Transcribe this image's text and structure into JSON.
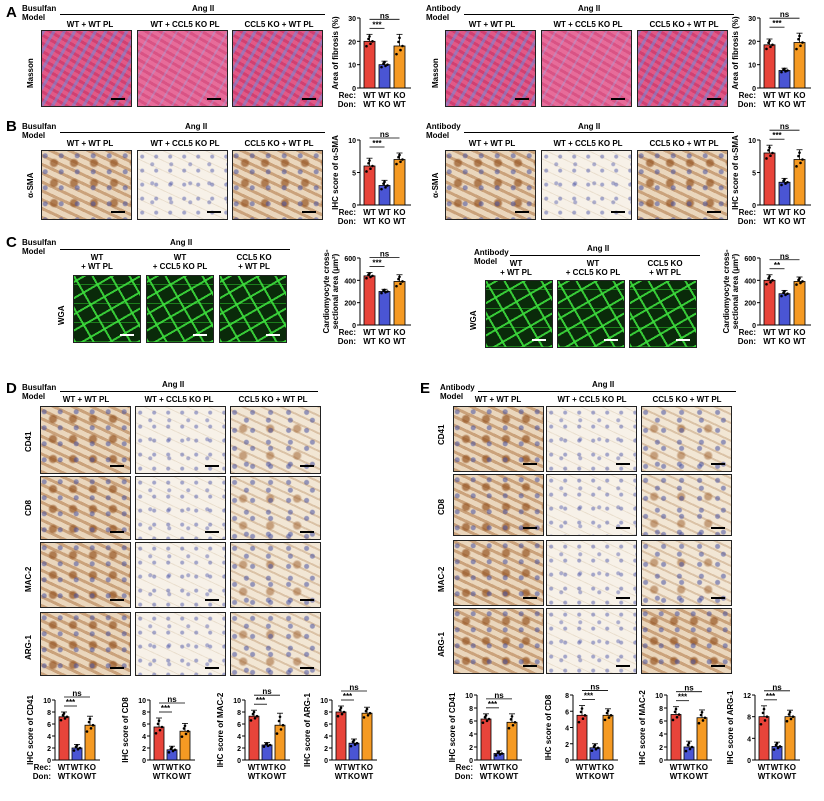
{
  "panels": [
    "A",
    "B",
    "C",
    "D",
    "E"
  ],
  "models": {
    "busulfan": "Busulfan\nModel",
    "antibody": "Antibody\nModel"
  },
  "treatment": "Ang II",
  "conditions": [
    "WT + WT PL",
    "WT + CCL5 KO PL",
    "CCL5 KO + WT PL"
  ],
  "conditions_wrapped": [
    "WT\n+ WT PL",
    "WT\n+ CCL5 KO PL",
    "CCL5 KO\n+ WT PL"
  ],
  "stains": [
    "Masson",
    "α-SMA",
    "WGA",
    "CD41",
    "CD8",
    "MAC-2",
    "ARG-1"
  ],
  "axis_rows": {
    "rec": "Rec:",
    "don": "Don:",
    "rec_vals": [
      "WT",
      "WT",
      "KO"
    ],
    "don_vals": [
      "WT",
      "KO",
      "WT"
    ]
  },
  "sig": {
    "ns": "ns",
    "three": "***",
    "two": "**"
  },
  "colors": {
    "wt_wt": "#e8443a",
    "wt_ko": "#4a55d4",
    "ko_wt": "#f59a23"
  },
  "chart_data": [
    {
      "id": "A-busulfan",
      "type": "bar",
      "ylabel": "Area of fibrosis (%)",
      "ylim": [
        0,
        30
      ],
      "yticks": [
        0,
        10,
        20,
        30
      ],
      "values": [
        20,
        10,
        18
      ],
      "errors": [
        3,
        1.5,
        5
      ],
      "sig": [
        "***",
        "ns"
      ]
    },
    {
      "id": "A-antibody",
      "type": "bar",
      "ylabel": "Area of fibrosis (%)",
      "ylim": [
        0,
        30
      ],
      "yticks": [
        0,
        10,
        20,
        30
      ],
      "values": [
        18.5,
        7.5,
        19.5
      ],
      "errors": [
        2.5,
        1,
        4
      ],
      "sig": [
        "***",
        "ns"
      ]
    },
    {
      "id": "B-busulfan",
      "type": "bar",
      "ylabel": "IHC score of α-SMA",
      "ylim": [
        0,
        10
      ],
      "yticks": [
        0,
        5,
        10
      ],
      "values": [
        6,
        3,
        7
      ],
      "errors": [
        1.2,
        0.8,
        1
      ],
      "sig": [
        "***",
        "ns"
      ]
    },
    {
      "id": "B-antibody",
      "type": "bar",
      "ylabel": "IHC score of α-SMA",
      "ylim": [
        0,
        10
      ],
      "yticks": [
        0,
        5,
        10
      ],
      "values": [
        8,
        3.5,
        7
      ],
      "errors": [
        1.2,
        0.6,
        1.5
      ],
      "sig": [
        "***",
        "ns"
      ]
    },
    {
      "id": "C-busulfan",
      "type": "bar",
      "ylabel": "Cardiomyocyte cross-\nsectional area (μm²)",
      "ylim": [
        0,
        600
      ],
      "yticks": [
        0,
        200,
        400,
        600
      ],
      "values": [
        440,
        300,
        390
      ],
      "errors": [
        30,
        20,
        60
      ],
      "sig": [
        "***",
        "ns"
      ]
    },
    {
      "id": "C-antibody",
      "type": "bar",
      "ylabel": "Cardiomyocyte cross-\nsectional area (μm²)",
      "ylim": [
        0,
        600
      ],
      "yticks": [
        0,
        200,
        400,
        600
      ],
      "values": [
        400,
        280,
        390
      ],
      "errors": [
        50,
        30,
        40
      ],
      "sig": [
        "**",
        "ns"
      ]
    },
    {
      "id": "D-CD41",
      "type": "bar",
      "ylabel": "IHC score of CD41",
      "ylim": [
        0,
        10
      ],
      "yticks": [
        0,
        2,
        4,
        6,
        8,
        10
      ],
      "values": [
        7.2,
        2,
        5.8
      ],
      "errors": [
        0.8,
        0.6,
        1.5
      ],
      "sig": [
        "***",
        "ns"
      ]
    },
    {
      "id": "D-CD8",
      "type": "bar",
      "ylabel": "IHC score of CD8",
      "ylim": [
        0,
        10
      ],
      "yticks": [
        0,
        2,
        4,
        6,
        8,
        10
      ],
      "values": [
        5.5,
        1.7,
        4.8
      ],
      "errors": [
        1.5,
        0.6,
        1.3
      ],
      "sig": [
        "***",
        "ns"
      ]
    },
    {
      "id": "D-MAC2",
      "type": "bar",
      "ylabel": "IHC score of MAC-2",
      "ylim": [
        0,
        10
      ],
      "yticks": [
        0,
        2,
        4,
        6,
        8,
        10
      ],
      "values": [
        7.3,
        2.5,
        5.8
      ],
      "errors": [
        1,
        0.4,
        2
      ],
      "sig": [
        "***",
        "ns"
      ]
    },
    {
      "id": "D-ARG1",
      "type": "bar",
      "ylabel": "IHC score of ARG-1",
      "ylim": [
        0,
        10
      ],
      "yticks": [
        0,
        2,
        4,
        6,
        8,
        10
      ],
      "values": [
        8,
        2.8,
        7.8
      ],
      "errors": [
        1,
        0.7,
        1
      ],
      "sig": [
        "***",
        "ns"
      ]
    },
    {
      "id": "E-CD41",
      "type": "bar",
      "ylabel": "IHC score of CD41",
      "ylim": [
        0,
        10
      ],
      "yticks": [
        0,
        2,
        4,
        6,
        8,
        10
      ],
      "values": [
        6.3,
        1,
        5.8
      ],
      "errors": [
        0.8,
        0.4,
        1.3
      ],
      "sig": [
        "***",
        "ns"
      ]
    },
    {
      "id": "E-CD8",
      "type": "bar",
      "ylabel": "IHC score of CD8",
      "ylim": [
        0,
        8
      ],
      "yticks": [
        0,
        2,
        4,
        6,
        8
      ],
      "values": [
        5.5,
        1.5,
        5.5
      ],
      "errors": [
        1.2,
        0.5,
        0.8
      ],
      "sig": [
        "***",
        "ns"
      ]
    },
    {
      "id": "E-MAC2",
      "type": "bar",
      "ylabel": "IHC score of MAC-2",
      "ylim": [
        0,
        10
      ],
      "yticks": [
        0,
        2,
        4,
        6,
        8,
        10
      ],
      "values": [
        7,
        2,
        6.5
      ],
      "errors": [
        1.2,
        0.9,
        1.2
      ],
      "sig": [
        "***",
        "ns"
      ]
    },
    {
      "id": "E-ARG1",
      "type": "bar",
      "ylabel": "IHC score of ARG-1",
      "ylim": [
        0,
        12
      ],
      "yticks": [
        0,
        4,
        8,
        12
      ],
      "values": [
        8,
        2.5,
        8
      ],
      "errors": [
        2,
        0.8,
        1.2
      ],
      "sig": [
        "***",
        "ns"
      ]
    }
  ]
}
